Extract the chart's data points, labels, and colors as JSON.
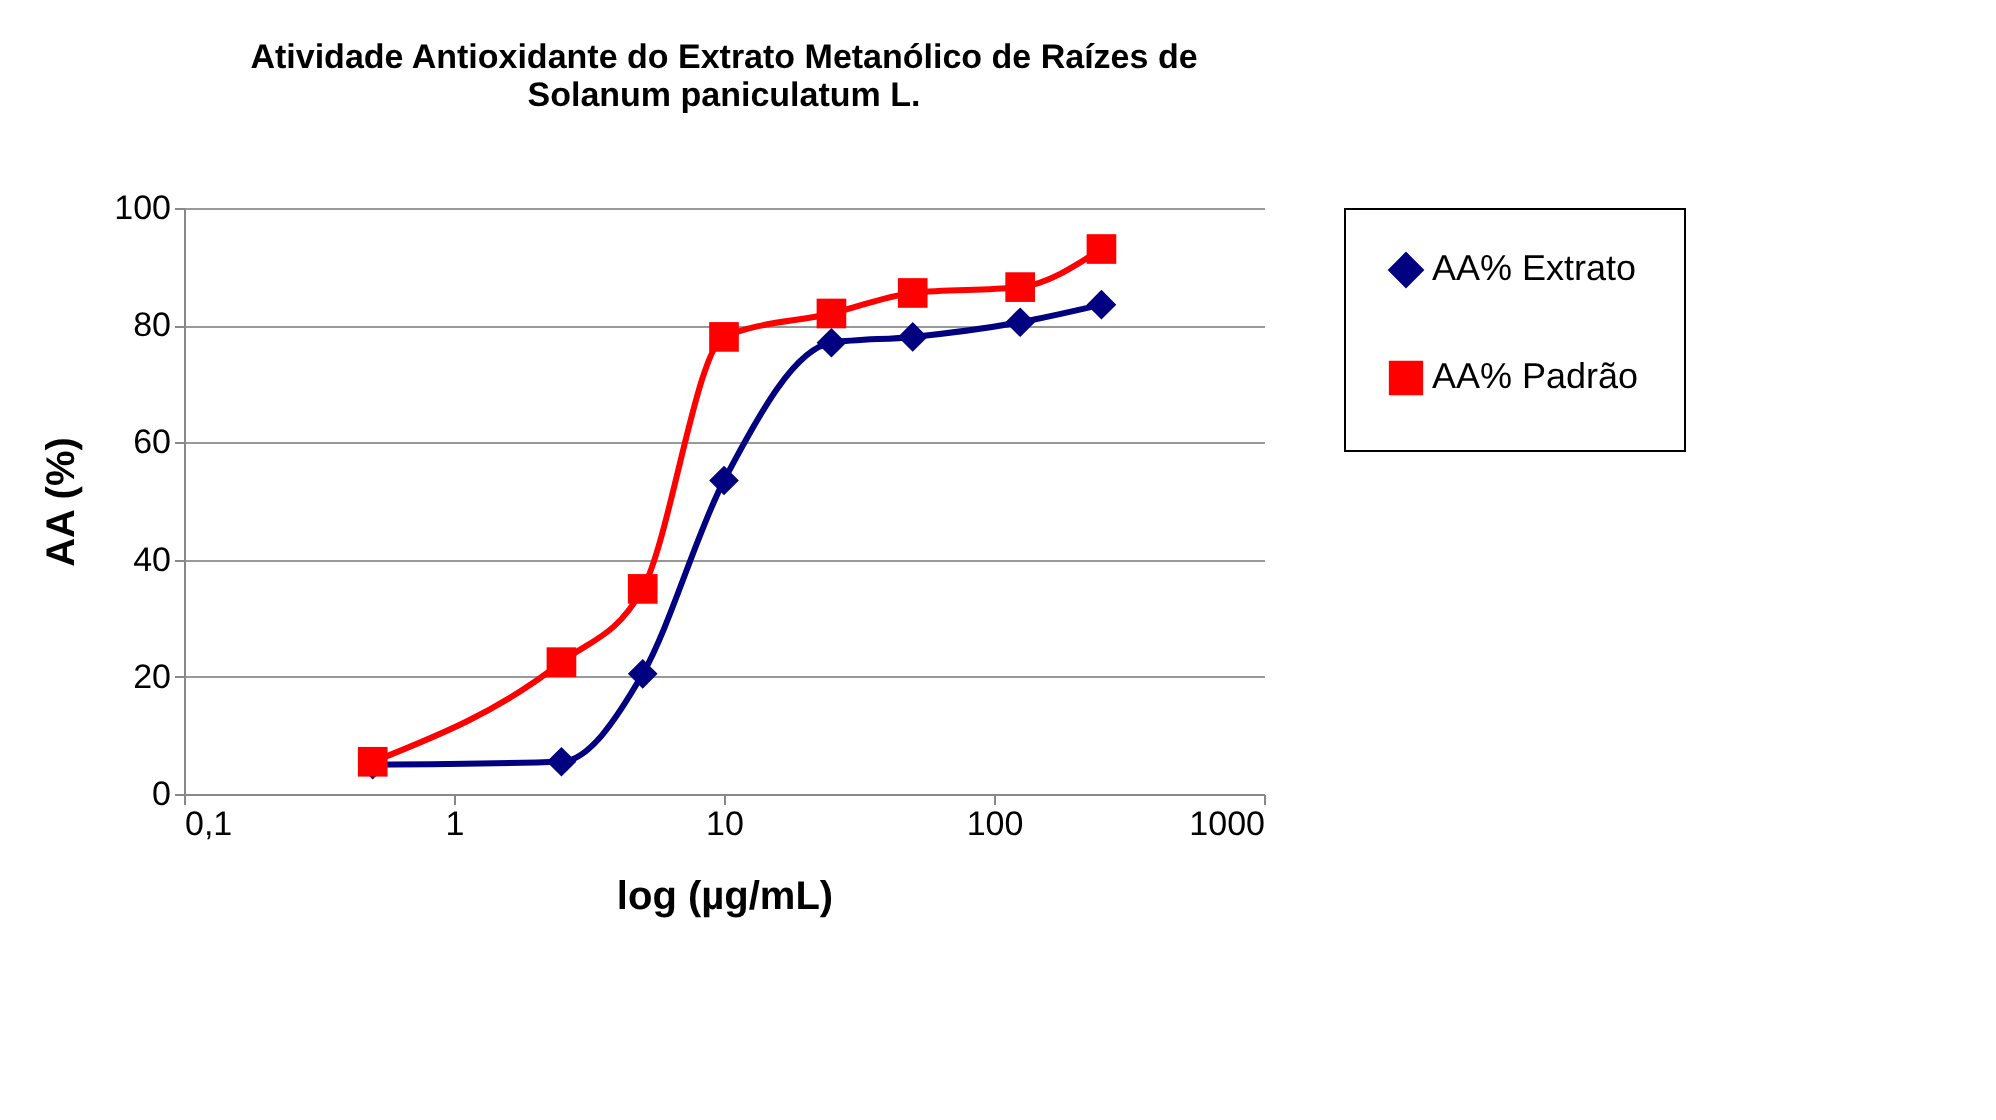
{
  "chart_data": {
    "type": "line",
    "title": [
      "Atividade Antioxidante do Extrato Metanólico de Raízes de",
      "Solanum paniculatum L."
    ],
    "xlabel": "log (µg/mL)",
    "ylabel": "AA (%)",
    "x": [
      0.5,
      2.5,
      5,
      10,
      25,
      50,
      125,
      250
    ],
    "series": [
      {
        "name": "AA% Extrato",
        "color": "#000080",
        "marker": "diamond",
        "values": [
          5,
          5.5,
          20.5,
          53.5,
          77,
          78,
          80.5,
          83.5
        ]
      },
      {
        "name": "AA% Padrão",
        "color": "#ff0000",
        "marker": "square",
        "values": [
          5.5,
          22.5,
          35,
          78,
          82,
          85.5,
          86.5,
          93
        ]
      }
    ],
    "log": "x",
    "xlim": [
      0.1,
      1000
    ],
    "xticks": [
      {
        "value": 0.1,
        "label": "0,1"
      },
      1,
      10,
      100,
      1000
    ],
    "ylim": [
      0,
      100
    ],
    "yticks": [
      0,
      20,
      40,
      60,
      80,
      100
    ],
    "grid": "y",
    "legend": "right"
  }
}
